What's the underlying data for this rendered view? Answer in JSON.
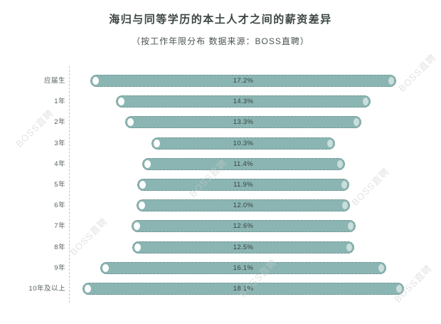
{
  "header": {
    "title": "海归与同等学历的本土人才之间的薪资差异",
    "subtitle": "（按工作年限分布 数据来源：BOSS直聘）"
  },
  "watermark": "BOSS直聘",
  "chart_data": {
    "type": "bar",
    "orientation": "horizontal-centered",
    "title": "海归与同等学历的本土人才之间的薪资差异",
    "subtitle": "（按工作年限分布 数据来源：BOSS直聘）",
    "source": "BOSS直聘",
    "categories": [
      "应届生",
      "1年",
      "2年",
      "3年",
      "4年",
      "5年",
      "6年",
      "7年",
      "8年",
      "9年",
      "10年及以上"
    ],
    "values": [
      17.2,
      14.3,
      13.3,
      10.3,
      11.4,
      11.9,
      12.0,
      12.6,
      12.5,
      16.1,
      18.1
    ],
    "value_labels": [
      "17.2%",
      "14.3%",
      "13.3%",
      "10.3%",
      "11.4%",
      "11.9%",
      "12.0%",
      "12.6%",
      "12.5%",
      "16.1%",
      "18.1%"
    ],
    "unit": "%",
    "xlabel": "",
    "ylabel": "",
    "grid": false,
    "legend": false
  },
  "colors": {
    "background": "#ffffff",
    "bar": "#8ab5b2",
    "bar_border": "#7ba5a2",
    "title_text": "#3c4643",
    "category_text": "#565f5c",
    "value_text": "#3a4441",
    "axis_line": "#c2c8c7",
    "watermark": "#c9cecd"
  }
}
